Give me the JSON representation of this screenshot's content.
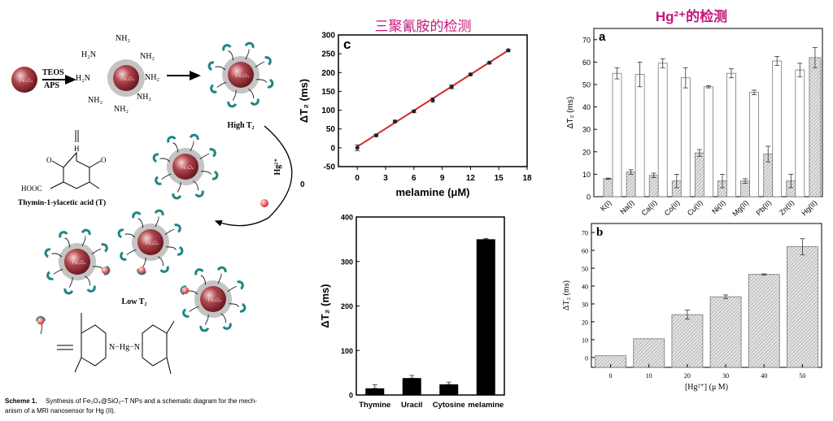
{
  "colors": {
    "title": "#c2187a",
    "fit_line": "#d42a2a",
    "core": "#a8323c",
    "shell": "#c4c4c4",
    "receptor": "#1f8582",
    "hg_ion": "#e23b3b"
  },
  "titles": {
    "melamine": "三聚氰胺的检测",
    "hg": "Hg²⁺的检测"
  },
  "scheme": {
    "teos": "TEOS",
    "aps": "APS",
    "nh2": "NH₂",
    "h2n": "H₂N",
    "high_t2": "High T₂",
    "low_t2": "Low T₂",
    "hg_arrow": "Hg²⁺",
    "thymine_label": "Thymin-1-ylacetic acid (T)",
    "hooc": "HOOC",
    "h": "H",
    "n": "N",
    "o": "O",
    "hg_bond": "N−Hg−N",
    "core_label": "Fe₃O₄",
    "stray": "0",
    "caption_bold": "Scheme 1.",
    "caption_line1": "Synthesis of Fe₃O₄@SiO₂–T NPs and a schematic diagram for the mech-",
    "caption_line2": "anism of a MRI nanosensor for Hg (II)."
  },
  "chart_data": [
    {
      "id": "c",
      "type": "scatter",
      "panel_label": "c",
      "xlabel": "melamine (μM)",
      "ylabel": "ΔT₂ (ms)",
      "xlim": [
        -2,
        18
      ],
      "ylim": [
        -50,
        300
      ],
      "xticks": [
        0,
        3,
        6,
        9,
        12,
        15,
        18
      ],
      "yticks": [
        -50,
        0,
        50,
        100,
        150,
        200,
        250,
        300
      ],
      "x": [
        0,
        2,
        4,
        6,
        8,
        10,
        12,
        14,
        16
      ],
      "y": [
        0,
        33,
        70,
        97,
        127,
        162,
        195,
        226,
        259
      ],
      "err": [
        8,
        3,
        3,
        3,
        6,
        5,
        3,
        3,
        3
      ],
      "fit": {
        "x": [
          0,
          16
        ],
        "y": [
          3,
          259
        ]
      },
      "grid": false
    },
    {
      "id": "selectivity",
      "type": "bar",
      "xlabel": "",
      "ylabel": "ΔT₂ (ms)",
      "categories": [
        "Thymine",
        "Uracil",
        "Cytosine",
        "melamine"
      ],
      "values": [
        15,
        38,
        24,
        350
      ],
      "err": [
        8,
        6,
        5,
        2
      ],
      "ylim": [
        0,
        400
      ],
      "yticks": [
        0,
        100,
        200,
        300,
        400
      ],
      "grid": false
    },
    {
      "id": "a",
      "type": "bar",
      "panel_label": "a",
      "ylabel": "ΔT₂ (ms)",
      "categories": [
        "K(I)",
        "Na(I)",
        "Ca(II)",
        "Co(II)",
        "Cu(II)",
        "Ni(II)",
        "Mg(II)",
        "Pb(II)",
        "Zn(II)",
        "Hg(II)"
      ],
      "series": [
        {
          "style": "hatched",
          "values": [
            8,
            11,
            9.5,
            7,
            19.5,
            7,
            7,
            19,
            7,
            62
          ],
          "err": [
            0.3,
            1,
            1,
            3,
            1.5,
            3,
            1,
            3.5,
            3,
            4.5
          ]
        },
        {
          "style": "white",
          "values": [
            55,
            54.5,
            59.5,
            53,
            49,
            55,
            46.5,
            60.5,
            56.5,
            null
          ],
          "err": [
            2.5,
            5.5,
            2,
            4.5,
            0.5,
            2,
            1,
            2,
            3,
            null
          ]
        }
      ],
      "ylim": [
        0,
        75
      ],
      "yticks": [
        0,
        10,
        20,
        30,
        40,
        50,
        60,
        70
      ],
      "grid": false
    },
    {
      "id": "b",
      "type": "bar",
      "panel_label": "b",
      "xlabel": "[Hg²⁺] (μ M)",
      "ylabel": "ΔT₂ (ms)",
      "categories": [
        "0",
        "10",
        "20",
        "30",
        "40",
        "50"
      ],
      "values": [
        1,
        10.5,
        24,
        34,
        46.5,
        62
      ],
      "err": [
        0,
        0,
        2.5,
        1,
        0.3,
        4.5
      ],
      "ylim": [
        -5.5,
        75
      ],
      "yticks": [
        0,
        10,
        20,
        30,
        40,
        50,
        60,
        70
      ],
      "grid": false
    }
  ]
}
